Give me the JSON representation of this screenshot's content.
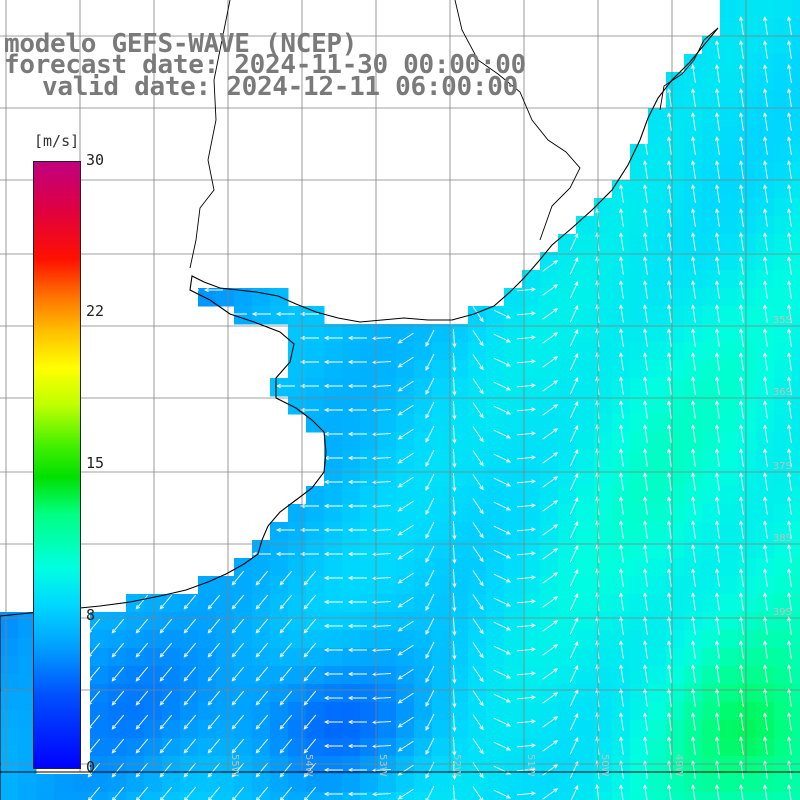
{
  "title": {
    "line1": "modelo GEFS-WAVE (NCEP)",
    "line2": "forecast date: 2024-11-30 00:00:00",
    "line3": "valid date: 2024-12-11 06:00:00"
  },
  "colorbar": {
    "unit": "[m/s]",
    "ticks": [
      "30",
      "22",
      "15",
      "8",
      "0"
    ]
  },
  "graticule": {
    "lat_labels": [
      "35S",
      "36S",
      "37S",
      "38S",
      "39S"
    ],
    "lon_labels": [
      "55W",
      "54W",
      "53W",
      "52W",
      "51W",
      "50W",
      "49W"
    ]
  },
  "colors": {
    "title": "#7a7a7a",
    "land": "#ffffff",
    "coast": "#000000",
    "grid": "#808080",
    "arrows": "#ffffff"
  }
}
